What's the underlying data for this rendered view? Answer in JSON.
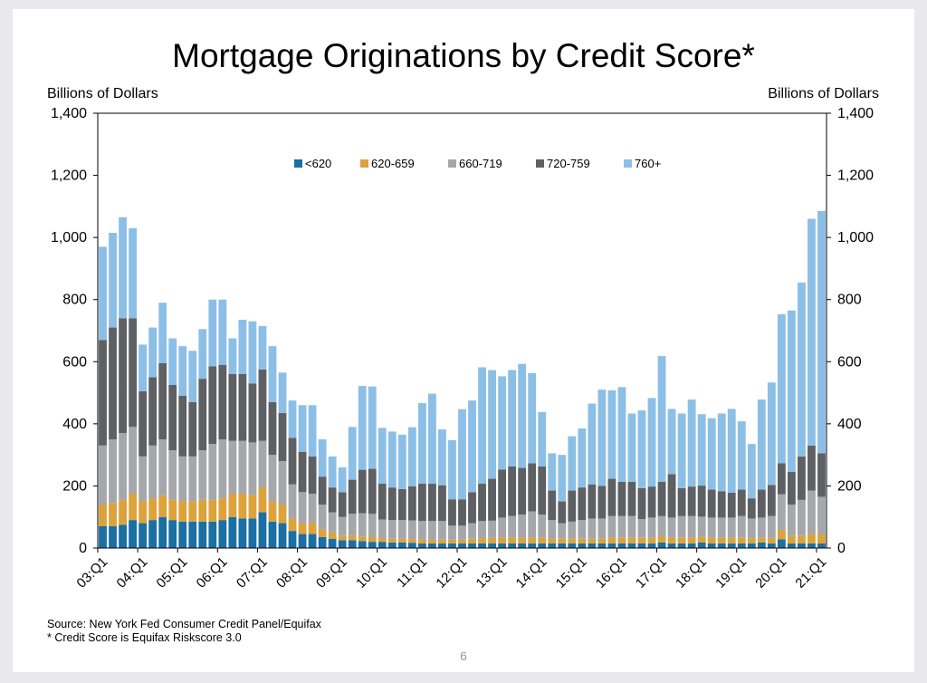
{
  "page": {
    "title": "Mortgage Originations by Credit Score*",
    "left_unit": "Billions of Dollars",
    "right_unit": "Billions of Dollars",
    "source": "Source: New York Fed Consumer Credit Panel/Equifax",
    "note": "* Credit Score is Equifax Riskscore 3.0",
    "page_number": "6"
  },
  "chart_data": {
    "type": "bar",
    "stacked": true,
    "title": "Mortgage Originations by Credit Score*",
    "ylabel": "Billions of Dollars",
    "y2label": "Billions of Dollars",
    "ylim": [
      0,
      1400
    ],
    "yticks": [
      0,
      200,
      400,
      600,
      800,
      1000,
      1200,
      1400
    ],
    "ytick_labels": [
      "0",
      "200",
      "400",
      "600",
      "800",
      "1,000",
      "1,200",
      "1,400"
    ],
    "grid": false,
    "legend_position": "top-center",
    "categories": [
      "03:Q1",
      "03:Q2",
      "03:Q3",
      "03:Q4",
      "04:Q1",
      "04:Q2",
      "04:Q3",
      "04:Q4",
      "05:Q1",
      "05:Q2",
      "05:Q3",
      "05:Q4",
      "06:Q1",
      "06:Q2",
      "06:Q3",
      "06:Q4",
      "07:Q1",
      "07:Q2",
      "07:Q3",
      "07:Q4",
      "08:Q1",
      "08:Q2",
      "08:Q3",
      "08:Q4",
      "09:Q1",
      "09:Q2",
      "09:Q3",
      "09:Q4",
      "10:Q1",
      "10:Q2",
      "10:Q3",
      "10:Q4",
      "11:Q1",
      "11:Q2",
      "11:Q3",
      "11:Q4",
      "12:Q1",
      "12:Q2",
      "12:Q3",
      "12:Q4",
      "13:Q1",
      "13:Q2",
      "13:Q3",
      "13:Q4",
      "14:Q1",
      "14:Q2",
      "14:Q3",
      "14:Q4",
      "15:Q1",
      "15:Q2",
      "15:Q3",
      "15:Q4",
      "16:Q1",
      "16:Q2",
      "16:Q3",
      "16:Q4",
      "17:Q1",
      "17:Q2",
      "17:Q3",
      "17:Q4",
      "18:Q1",
      "18:Q2",
      "18:Q3",
      "18:Q4",
      "19:Q1",
      "19:Q2",
      "19:Q3",
      "19:Q4",
      "20:Q1",
      "20:Q2",
      "20:Q3",
      "20:Q4",
      "21:Q1"
    ],
    "x_tick_labels": [
      "03:Q1",
      "04:Q1",
      "05:Q1",
      "06:Q1",
      "07:Q1",
      "08:Q1",
      "09:Q1",
      "10:Q1",
      "11:Q1",
      "12:Q1",
      "13:Q1",
      "14:Q1",
      "15:Q1",
      "16:Q1",
      "17:Q1",
      "18:Q1",
      "19:Q1",
      "20:Q1",
      "21:Q1"
    ],
    "series": [
      {
        "name": "<620",
        "color": "#1a6fa3",
        "values": [
          70,
          70,
          75,
          90,
          80,
          90,
          100,
          90,
          85,
          85,
          85,
          85,
          90,
          100,
          95,
          95,
          115,
          85,
          80,
          55,
          45,
          45,
          35,
          30,
          25,
          25,
          22,
          20,
          20,
          18,
          18,
          17,
          15,
          15,
          15,
          15,
          15,
          15,
          15,
          15,
          15,
          15,
          15,
          15,
          15,
          15,
          15,
          15,
          15,
          15,
          15,
          15,
          15,
          15,
          15,
          15,
          18,
          15,
          15,
          15,
          18,
          15,
          15,
          15,
          15,
          15,
          18,
          15,
          28,
          15,
          15,
          15,
          15
        ]
      },
      {
        "name": "620-659",
        "color": "#dba33a",
        "values": [
          70,
          75,
          80,
          85,
          70,
          70,
          70,
          65,
          65,
          65,
          70,
          70,
          70,
          75,
          80,
          75,
          80,
          65,
          60,
          40,
          35,
          35,
          25,
          20,
          15,
          15,
          15,
          15,
          12,
          12,
          12,
          12,
          12,
          12,
          12,
          12,
          12,
          15,
          17,
          18,
          18,
          18,
          18,
          18,
          18,
          15,
          15,
          15,
          15,
          15,
          15,
          18,
          18,
          18,
          18,
          18,
          20,
          18,
          18,
          18,
          18,
          18,
          18,
          18,
          18,
          15,
          15,
          18,
          30,
          25,
          25,
          30,
          30
        ]
      },
      {
        "name": "660-719",
        "color": "#a5a7aa",
        "values": [
          190,
          205,
          215,
          215,
          145,
          170,
          180,
          160,
          145,
          145,
          160,
          180,
          190,
          170,
          170,
          170,
          150,
          150,
          140,
          110,
          100,
          95,
          80,
          65,
          60,
          70,
          75,
          75,
          60,
          60,
          60,
          60,
          60,
          60,
          60,
          45,
          45,
          50,
          55,
          55,
          65,
          70,
          75,
          85,
          75,
          60,
          50,
          55,
          60,
          65,
          65,
          70,
          70,
          70,
          60,
          65,
          65,
          65,
          70,
          70,
          65,
          65,
          65,
          65,
          70,
          65,
          65,
          70,
          115,
          100,
          115,
          140,
          120
        ]
      },
      {
        "name": "720-759",
        "color": "#5e6064",
        "values": [
          340,
          360,
          370,
          350,
          210,
          220,
          245,
          210,
          195,
          175,
          230,
          250,
          240,
          215,
          215,
          190,
          230,
          170,
          155,
          150,
          130,
          120,
          90,
          80,
          80,
          110,
          140,
          145,
          115,
          105,
          100,
          110,
          120,
          120,
          115,
          85,
          85,
          100,
          120,
          135,
          155,
          160,
          150,
          155,
          155,
          95,
          70,
          100,
          105,
          110,
          105,
          120,
          110,
          110,
          100,
          100,
          110,
          140,
          90,
          95,
          100,
          90,
          85,
          80,
          85,
          65,
          90,
          100,
          100,
          105,
          140,
          145,
          140
        ]
      },
      {
        "name": "760+",
        "color": "#8cbfe6",
        "values": [
          300,
          305,
          325,
          290,
          150,
          160,
          195,
          150,
          160,
          165,
          160,
          215,
          210,
          115,
          175,
          200,
          140,
          180,
          130,
          120,
          150,
          165,
          120,
          100,
          80,
          170,
          270,
          265,
          180,
          180,
          175,
          190,
          260,
          290,
          180,
          190,
          290,
          295,
          375,
          350,
          300,
          310,
          335,
          290,
          175,
          120,
          150,
          175,
          190,
          260,
          310,
          285,
          305,
          220,
          250,
          285,
          405,
          210,
          240,
          280,
          230,
          230,
          250,
          270,
          220,
          175,
          290,
          330,
          480,
          520,
          560,
          730,
          780
        ]
      }
    ]
  }
}
